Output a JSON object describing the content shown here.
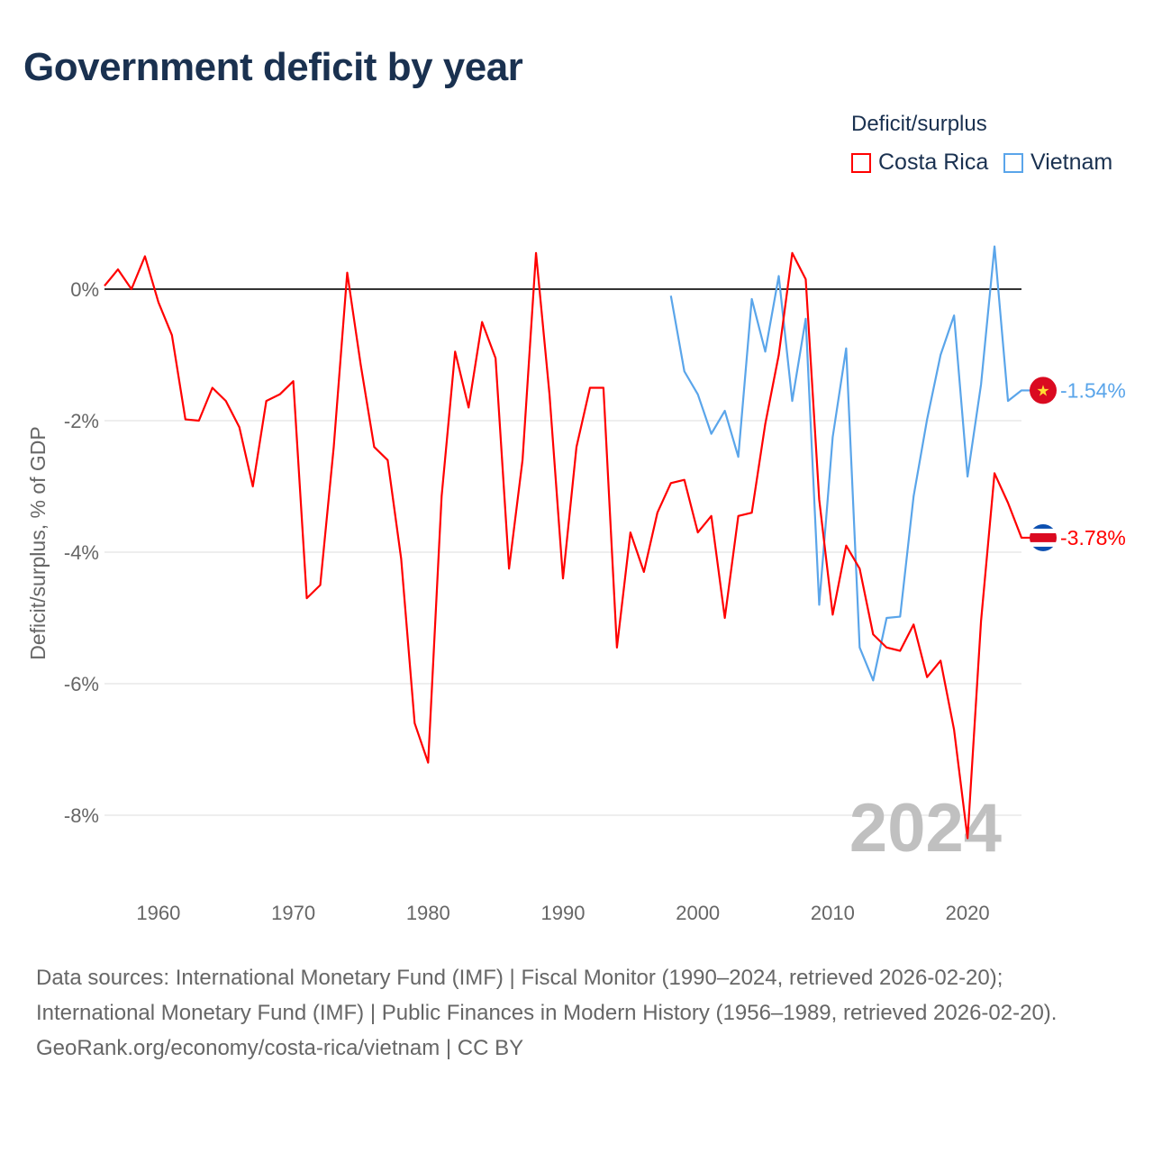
{
  "title": "Government deficit by year",
  "legend": {
    "title": "Deficit/surplus",
    "items": [
      {
        "label": "Costa Rica",
        "color": "#ff0000"
      },
      {
        "label": "Vietnam",
        "color": "#5aa5ea"
      }
    ]
  },
  "watermark_year": "2024",
  "footer": {
    "sources": "Data sources: International Monetary Fund (IMF) | Fiscal Monitor (1990–2024, retrieved 2026-02-20); International Monetary Fund (IMF) | Public Finances in Modern History (1956–1989, retrieved 2026-02-20).",
    "link": "GeoRank.org/economy/costa-rica/vietnam | CC BY"
  },
  "chart_data": {
    "type": "line",
    "title": "Government deficit by year",
    "xlabel": "",
    "ylabel": "Deficit/surplus, % of GDP",
    "xlim": [
      1956,
      2024
    ],
    "ylim": [
      -9,
      0.9
    ],
    "xticks": [
      1960,
      1970,
      1980,
      1990,
      2000,
      2010,
      2020
    ],
    "yticks": [
      0,
      -2,
      -4,
      -6,
      -8
    ],
    "ytick_labels": [
      "0%",
      "-2%",
      "-4%",
      "-6%",
      "-8%"
    ],
    "grid": true,
    "legend_position": "top-right",
    "series": [
      {
        "name": "Costa Rica",
        "color": "#ff0000",
        "end_label": "-3.78%",
        "flag": "costa-rica",
        "x_start": 1956,
        "values": [
          0.05,
          0.3,
          0,
          0.5,
          -0.2,
          -0.7,
          -1.98,
          -2.0,
          -1.5,
          -1.7,
          -2.1,
          -3.0,
          -1.7,
          -1.6,
          -1.4,
          -4.7,
          -4.5,
          -2.4,
          0.25,
          -1.15,
          -2.4,
          -2.6,
          -4.1,
          -6.6,
          -7.2,
          -3.15,
          -0.95,
          -1.8,
          -0.5,
          -1.05,
          -4.25,
          -2.6,
          0.55,
          -1.6,
          -4.4,
          -2.4,
          -1.5,
          -1.5,
          -5.45,
          -3.7,
          -4.3,
          -3.4,
          -2.95,
          -2.9,
          -3.7,
          -3.45,
          -5.0,
          -3.45,
          -3.4,
          -2.05,
          -1.0,
          0.55,
          0.15,
          -3.2,
          -4.95,
          -3.9,
          -4.25,
          -5.25,
          -5.45,
          -5.5,
          -5.1,
          -5.9,
          -5.65,
          -6.7,
          -8.35,
          -5.05,
          -2.8,
          -3.25,
          -3.78
        ]
      },
      {
        "name": "Vietnam",
        "color": "#5aa5ea",
        "end_label": "-1.54%",
        "flag": "vietnam",
        "x_start": 1998,
        "values": [
          -0.1,
          -1.25,
          -1.6,
          -2.2,
          -1.85,
          -2.55,
          -0.15,
          -0.95,
          0.2,
          -1.7,
          -0.45,
          -4.8,
          -2.25,
          -0.9,
          -5.45,
          -5.95,
          -5.0,
          -4.98,
          -3.15,
          -1.98,
          -1.0,
          -0.4,
          -2.85,
          -1.45,
          0.65,
          -1.7,
          -1.54
        ]
      }
    ]
  }
}
